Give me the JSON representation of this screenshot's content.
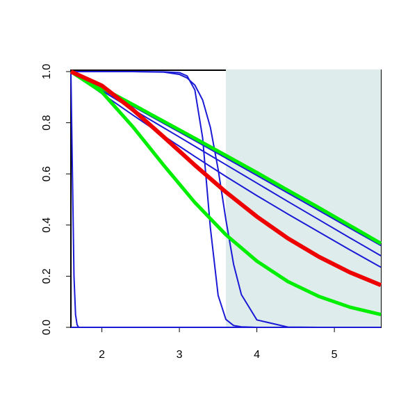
{
  "chart_data": {
    "type": "line",
    "xlim": [
      1.6,
      5.6
    ],
    "ylim": [
      0,
      1
    ],
    "xticks": [
      2,
      3,
      4,
      5
    ],
    "yticks": [
      {
        "value": 0,
        "label": "0.0"
      },
      0.2,
      0.4,
      0.6,
      0.8,
      {
        "value": 1,
        "label": "1.0"
      }
    ],
    "shaded_region": {
      "xlim": [
        3.6,
        5.6
      ],
      "color": "#deecec"
    },
    "series": [
      {
        "color": "#1a1ad6",
        "width": 2,
        "x": [
          1.6,
          5.6
        ],
        "values": [
          0,
          0
        ]
      },
      {
        "color": "#1a1ad6",
        "width": 2,
        "x": [
          1.6,
          1.62,
          1.64,
          1.66,
          1.68,
          1.7,
          2.0,
          5.6
        ],
        "values": [
          1,
          0.6,
          0.2,
          0.05,
          0.01,
          0,
          0,
          0
        ]
      },
      {
        "color": "#1a1ad6",
        "width": 2,
        "x": [
          1.6,
          2.0,
          2.4,
          2.8,
          3.0,
          3.1,
          3.2,
          3.3,
          3.4,
          3.5,
          3.6,
          3.7,
          3.8,
          4.0,
          4.4,
          4.8,
          5.6
        ],
        "values": [
          1,
          1,
          1,
          0.999,
          0.996,
          0.983,
          0.928,
          0.741,
          0.389,
          0.125,
          0.031,
          0.007,
          0.002,
          0,
          0,
          0,
          0
        ]
      },
      {
        "color": "#1a1ad6",
        "width": 2,
        "x": [
          1.6,
          2.0,
          2.4,
          2.8,
          3.0,
          3.1,
          3.2,
          3.3,
          3.4,
          3.5,
          3.6,
          3.7,
          3.8,
          4.0,
          4.4,
          4.8,
          5.6
        ],
        "values": [
          1,
          1,
          1,
          0.998,
          0.989,
          0.975,
          0.947,
          0.889,
          0.782,
          0.618,
          0.421,
          0.246,
          0.128,
          0.029,
          0.001,
          0,
          0
        ]
      },
      {
        "color": "#1a1ad6",
        "width": 2,
        "x": [
          1.6,
          2.0,
          2.4,
          2.8,
          3.2,
          3.6,
          4.0,
          4.4,
          4.8,
          5.2,
          5.6
        ],
        "values": [
          1,
          0.93,
          0.864,
          0.797,
          0.73,
          0.662,
          0.594,
          0.525,
          0.457,
          0.388,
          0.32
        ]
      },
      {
        "color": "#1a1ad6",
        "width": 2,
        "x": [
          1.6,
          2.0,
          2.4,
          2.8,
          3.2,
          3.6,
          4.0,
          4.4,
          4.8,
          5.2,
          5.6
        ],
        "values": [
          1,
          0.925,
          0.852,
          0.78,
          0.708,
          0.636,
          0.564,
          0.492,
          0.421,
          0.35,
          0.28
        ]
      },
      {
        "color": "#1a1ad6",
        "width": 2,
        "x": [
          1.6,
          2.0,
          2.4,
          2.8,
          3.2,
          3.6,
          4.0,
          4.4,
          4.8,
          5.2,
          5.6
        ],
        "values": [
          1,
          0.914,
          0.83,
          0.748,
          0.668,
          0.59,
          0.515,
          0.443,
          0.373,
          0.303,
          0.235
        ]
      },
      {
        "color": "#00ee00",
        "width": 5,
        "x": [
          1.6,
          2.0,
          2.4,
          2.8,
          3.2,
          3.6,
          4.0,
          4.4,
          4.8,
          5.2,
          5.6
        ],
        "values": [
          1,
          0.936,
          0.871,
          0.805,
          0.739,
          0.672,
          0.605,
          0.536,
          0.468,
          0.398,
          0.328
        ]
      },
      {
        "color": "#00ee00",
        "width": 5,
        "x": [
          1.6,
          2.0,
          2.4,
          2.8,
          3.2,
          3.6,
          4.0,
          4.4,
          4.8,
          5.2,
          5.6
        ],
        "values": [
          1,
          0.92,
          0.784,
          0.633,
          0.488,
          0.362,
          0.259,
          0.179,
          0.121,
          0.079,
          0.05
        ]
      },
      {
        "color": "#ee0000",
        "width": 6,
        "x": [
          1.6,
          2.0,
          2.4,
          2.8,
          3.2,
          3.6,
          4.0,
          4.4,
          4.8,
          5.2,
          5.6
        ],
        "values": [
          1,
          0.945,
          0.851,
          0.744,
          0.634,
          0.529,
          0.433,
          0.348,
          0.276,
          0.215,
          0.165
        ]
      }
    ]
  }
}
